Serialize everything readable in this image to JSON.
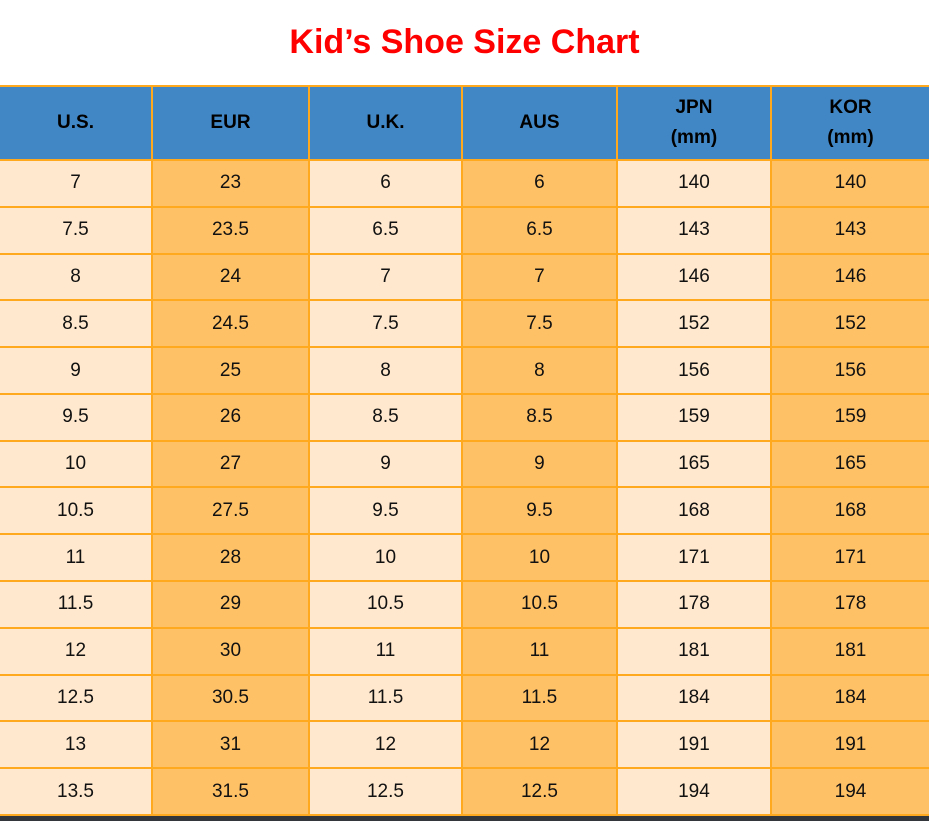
{
  "page": {
    "title": "Kid’s Shoe Size Chart"
  },
  "colors": {
    "title_red": "#ff0000",
    "header_blue": "#4287c5",
    "cell_cream": "#ffe8cd",
    "cell_orange": "#ffc166",
    "grid_orange": "#ffa91e",
    "bottom_edge_dark": "#33373b",
    "header_text": "#000000",
    "cell_text": "#111111"
  },
  "chart_data": {
    "type": "table",
    "title": "Kid’s Shoe Size Chart",
    "columns": [
      "U.S.",
      "EUR",
      "U.K.",
      "AUS",
      "JPN (mm)",
      "KOR (mm)"
    ],
    "header_lines": [
      [
        "U.S."
      ],
      [
        "EUR"
      ],
      [
        "U.K."
      ],
      [
        "AUS"
      ],
      [
        "JPN",
        "(mm)"
      ],
      [
        "KOR",
        "(mm)"
      ]
    ],
    "rows": [
      [
        "7",
        "23",
        "6",
        "6",
        "140",
        "140"
      ],
      [
        "7.5",
        "23.5",
        "6.5",
        "6.5",
        "143",
        "143"
      ],
      [
        "8",
        "24",
        "7",
        "7",
        "146",
        "146"
      ],
      [
        "8.5",
        "24.5",
        "7.5",
        "7.5",
        "152",
        "152"
      ],
      [
        "9",
        "25",
        "8",
        "8",
        "156",
        "156"
      ],
      [
        "9.5",
        "26",
        "8.5",
        "8.5",
        "159",
        "159"
      ],
      [
        "10",
        "27",
        "9",
        "9",
        "165",
        "165"
      ],
      [
        "10.5",
        "27.5",
        "9.5",
        "9.5",
        "168",
        "168"
      ],
      [
        "11",
        "28",
        "10",
        "10",
        "171",
        "171"
      ],
      [
        "11.5",
        "29",
        "10.5",
        "10.5",
        "178",
        "178"
      ],
      [
        "12",
        "30",
        "11",
        "11",
        "181",
        "181"
      ],
      [
        "12.5",
        "30.5",
        "11.5",
        "11.5",
        "184",
        "184"
      ],
      [
        "13",
        "31",
        "12",
        "12",
        "191",
        "191"
      ],
      [
        "13.5",
        "31.5",
        "12.5",
        "12.5",
        "194",
        "194"
      ]
    ],
    "layout": {
      "grid": true,
      "column_striping": [
        "cream",
        "orange",
        "cream",
        "orange",
        "cream",
        "orange"
      ]
    }
  }
}
